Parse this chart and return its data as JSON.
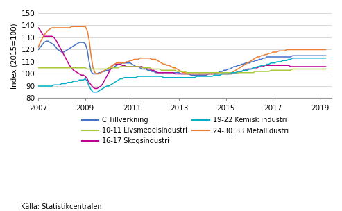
{
  "ylabel": "Index (2015=100)",
  "source": "Källa: Statistikcentralen",
  "xlim": [
    2007.0,
    2019.5
  ],
  "ylim": [
    80,
    150
  ],
  "yticks": [
    80,
    90,
    100,
    110,
    120,
    130,
    140,
    150
  ],
  "xticks": [
    2007,
    2009,
    2011,
    2013,
    2015,
    2017,
    2019
  ],
  "n_months": 148,
  "series": {
    "C Tillverkning": {
      "color": "#4472C4",
      "data": [
        120,
        122,
        124,
        126,
        127,
        127,
        126,
        125,
        124,
        122,
        120,
        119,
        118,
        118,
        119,
        120,
        121,
        122,
        123,
        124,
        125,
        126,
        126,
        126,
        125,
        120,
        110,
        102,
        100,
        100,
        100,
        101,
        101,
        102,
        102,
        103,
        103,
        104,
        105,
        106,
        107,
        108,
        108,
        109,
        109,
        109,
        109,
        109,
        108,
        107,
        106,
        106,
        105,
        104,
        104,
        104,
        103,
        103,
        102,
        102,
        101,
        101,
        101,
        101,
        101,
        101,
        101,
        101,
        101,
        101,
        101,
        101,
        101,
        100,
        100,
        100,
        100,
        100,
        99,
        99,
        99,
        99,
        99,
        99,
        99,
        99,
        99,
        100,
        100,
        100,
        100,
        101,
        101,
        102,
        102,
        103,
        103,
        104,
        104,
        105,
        106,
        106,
        107,
        107,
        108,
        108,
        109,
        109,
        109,
        110,
        110,
        111,
        111,
        112,
        112,
        113,
        113,
        114,
        114,
        114,
        114,
        114,
        114,
        114,
        114,
        114,
        114,
        114,
        114,
        114,
        115,
        115,
        115,
        115,
        115,
        115,
        115,
        115,
        115,
        115,
        115,
        115,
        115,
        115,
        115,
        115,
        115,
        115
      ]
    },
    "16-17 Skogsindustri": {
      "color": "#C00090",
      "data": [
        138,
        136,
        133,
        131,
        131,
        131,
        131,
        131,
        130,
        128,
        125,
        122,
        119,
        116,
        113,
        110,
        107,
        105,
        103,
        102,
        101,
        100,
        99,
        99,
        98,
        96,
        93,
        91,
        89,
        88,
        88,
        89,
        90,
        92,
        95,
        98,
        101,
        104,
        107,
        108,
        108,
        108,
        108,
        107,
        107,
        106,
        106,
        106,
        106,
        106,
        106,
        106,
        106,
        106,
        105,
        105,
        104,
        104,
        103,
        103,
        102,
        101,
        101,
        101,
        101,
        101,
        101,
        101,
        101,
        101,
        100,
        100,
        100,
        100,
        100,
        100,
        100,
        100,
        100,
        100,
        100,
        100,
        100,
        100,
        100,
        100,
        100,
        100,
        100,
        100,
        100,
        100,
        100,
        100,
        100,
        100,
        100,
        100,
        100,
        100,
        101,
        101,
        101,
        102,
        102,
        103,
        103,
        104,
        104,
        104,
        105,
        105,
        105,
        106,
        106,
        106,
        107,
        107,
        107,
        107,
        107,
        107,
        107,
        107,
        107,
        107,
        107,
        107,
        107,
        106,
        106,
        106,
        106,
        106,
        106,
        106,
        106,
        106,
        106,
        106,
        106,
        106,
        106,
        106,
        106,
        106,
        106,
        106
      ]
    },
    "24-30_33 Metallidustri": {
      "color": "#ED7D31",
      "data": [
        122,
        126,
        129,
        132,
        134,
        136,
        137,
        138,
        138,
        138,
        138,
        138,
        138,
        138,
        138,
        138,
        138,
        139,
        139,
        139,
        139,
        139,
        139,
        139,
        139,
        136,
        128,
        115,
        105,
        101,
        100,
        100,
        101,
        102,
        103,
        104,
        105,
        106,
        107,
        108,
        109,
        109,
        109,
        109,
        109,
        110,
        110,
        111,
        111,
        112,
        112,
        112,
        113,
        113,
        113,
        113,
        113,
        113,
        112,
        112,
        112,
        111,
        110,
        109,
        108,
        108,
        107,
        107,
        106,
        105,
        105,
        104,
        103,
        102,
        101,
        101,
        100,
        100,
        100,
        100,
        100,
        100,
        100,
        100,
        100,
        100,
        100,
        100,
        100,
        100,
        100,
        100,
        100,
        100,
        100,
        100,
        100,
        100,
        101,
        101,
        102,
        103,
        104,
        105,
        106,
        107,
        108,
        109,
        110,
        111,
        112,
        113,
        114,
        114,
        115,
        115,
        116,
        116,
        117,
        117,
        118,
        118,
        118,
        119,
        119,
        119,
        119,
        120,
        120,
        120,
        120,
        120,
        120,
        120,
        120,
        120,
        120,
        120,
        120,
        120,
        120,
        120,
        120,
        120,
        120,
        120,
        120,
        120
      ]
    },
    "10-11 Livsmedelsindustri": {
      "color": "#A9C93B",
      "data": [
        105,
        105,
        105,
        105,
        105,
        105,
        105,
        105,
        105,
        105,
        105,
        105,
        105,
        105,
        105,
        105,
        105,
        105,
        105,
        105,
        105,
        105,
        105,
        105,
        105,
        104,
        104,
        104,
        104,
        104,
        104,
        104,
        104,
        104,
        104,
        104,
        105,
        105,
        105,
        105,
        105,
        105,
        106,
        106,
        106,
        106,
        106,
        106,
        106,
        106,
        106,
        106,
        106,
        105,
        105,
        105,
        105,
        105,
        104,
        104,
        104,
        104,
        104,
        103,
        103,
        103,
        103,
        103,
        103,
        103,
        103,
        102,
        102,
        102,
        102,
        102,
        101,
        101,
        101,
        101,
        101,
        101,
        101,
        101,
        101,
        101,
        101,
        101,
        101,
        101,
        101,
        101,
        101,
        101,
        101,
        101,
        101,
        101,
        101,
        101,
        101,
        101,
        101,
        101,
        101,
        101,
        101,
        101,
        101,
        101,
        101,
        102,
        102,
        102,
        102,
        102,
        102,
        102,
        102,
        103,
        103,
        103,
        103,
        103,
        103,
        103,
        103,
        103,
        103,
        103,
        104,
        104,
        104,
        104,
        104,
        104,
        104,
        104,
        104,
        104,
        104,
        104,
        104,
        104,
        104,
        104,
        104,
        104
      ]
    },
    "19-22 Kemisk industri": {
      "color": "#00B0C8",
      "data": [
        90,
        90,
        90,
        90,
        90,
        90,
        90,
        90,
        91,
        91,
        91,
        91,
        92,
        92,
        92,
        93,
        93,
        93,
        94,
        94,
        94,
        95,
        95,
        95,
        96,
        94,
        90,
        87,
        85,
        85,
        85,
        86,
        87,
        88,
        89,
        90,
        90,
        91,
        92,
        93,
        94,
        95,
        96,
        96,
        97,
        97,
        97,
        97,
        97,
        97,
        97,
        98,
        98,
        98,
        98,
        98,
        98,
        98,
        98,
        98,
        98,
        98,
        98,
        98,
        97,
        97,
        97,
        97,
        97,
        97,
        97,
        97,
        97,
        97,
        97,
        97,
        97,
        97,
        97,
        97,
        97,
        98,
        98,
        98,
        98,
        98,
        98,
        98,
        98,
        98,
        99,
        99,
        99,
        99,
        100,
        100,
        100,
        100,
        100,
        101,
        101,
        101,
        102,
        102,
        102,
        103,
        103,
        103,
        104,
        104,
        105,
        105,
        106,
        106,
        107,
        107,
        107,
        108,
        108,
        109,
        109,
        109,
        110,
        110,
        110,
        111,
        111,
        111,
        112,
        112,
        113,
        113,
        113,
        113,
        113,
        113,
        113,
        113,
        113,
        113,
        113,
        113,
        113,
        113,
        113,
        113,
        113,
        113
      ]
    }
  },
  "legend_col1": [
    "C Tillverkning",
    "16-17 Skogsindustri",
    "24-30_33 Metallidustri"
  ],
  "legend_col2": [
    "10-11 Livsmedelsindustri",
    "19-22 Kemisk industri"
  ]
}
